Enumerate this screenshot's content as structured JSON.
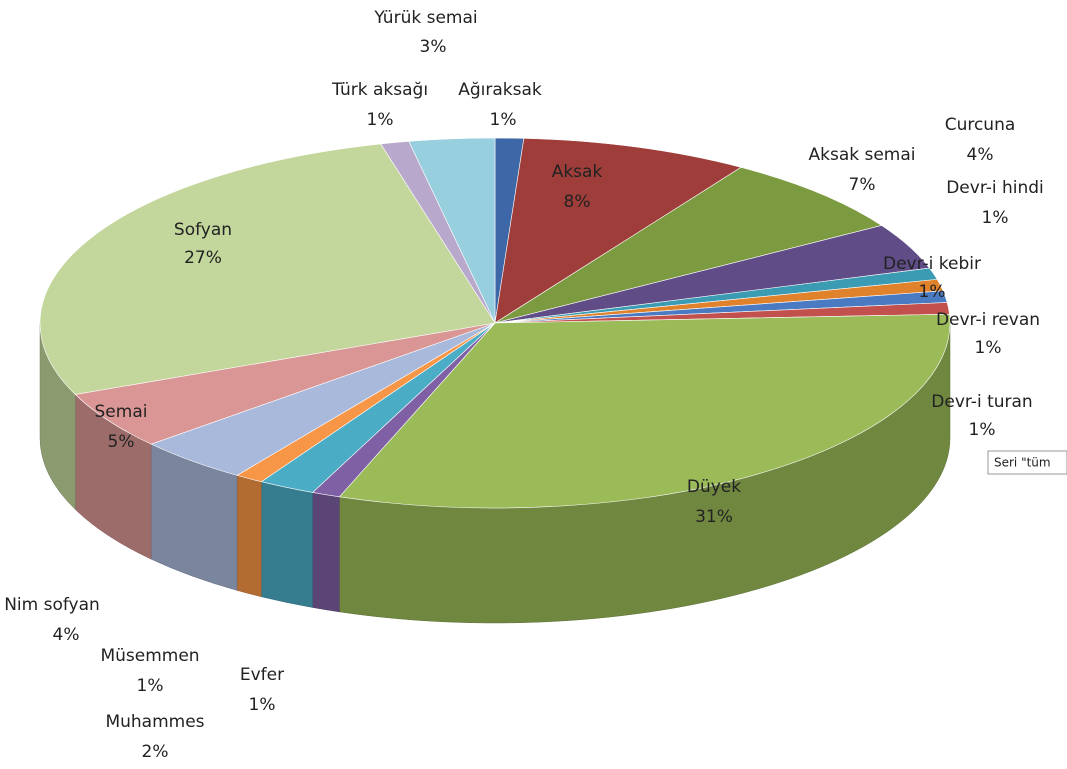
{
  "chart_data": {
    "type": "pie",
    "categories": [
      "Ağıraksak",
      "Aksak",
      "Aksak semai",
      "Curcuna",
      "Devr-i hindi",
      "Devr-i kebir",
      "Devr-i revan",
      "Devr-i turan",
      "Düyek",
      "Evfer",
      "Muhammes",
      "Müsemmen",
      "Nim sofyan",
      "Semai",
      "Sofyan",
      "Türk aksağı",
      "Yürük semai"
    ],
    "values": [
      1,
      8,
      7,
      4,
      1,
      1,
      1,
      1,
      31,
      1,
      2,
      1,
      4,
      5,
      27,
      1,
      3
    ],
    "value_labels": [
      "1%",
      "8%",
      "7%",
      "4%",
      "1%",
      "1%",
      "1%",
      "1%",
      "31%",
      "1%",
      "2%",
      "1%",
      "4%",
      "5%",
      "27%",
      "1%",
      "3%"
    ],
    "colors": [
      "#3d67a6",
      "#9e3d3a",
      "#7c9a40",
      "#604c86",
      "#3b9bb2",
      "#e0822c",
      "#4a7bc2",
      "#c2504d",
      "#9bbb59",
      "#7f60a4",
      "#4bacc6",
      "#f79646",
      "#a9b9dc",
      "#d99694",
      "#c3d69b",
      "#b8a8cc",
      "#97cfdf"
    ],
    "tooltip": "Seri \"tüm"
  }
}
